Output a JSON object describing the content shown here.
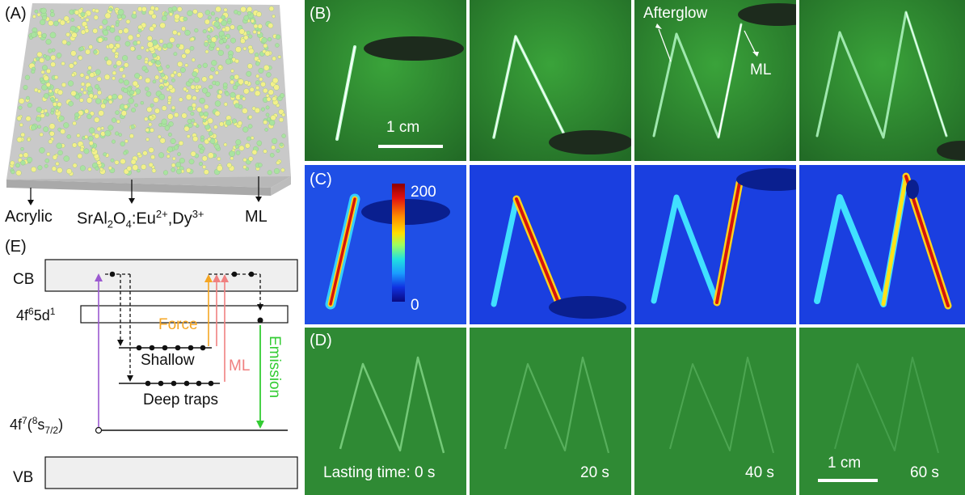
{
  "panel_a": {
    "label": "(A)",
    "material_labels": [
      "Acrylic",
      "SrAl2O4:Eu2+,Dy3+",
      "ML"
    ]
  },
  "panel_e": {
    "label": "(E)",
    "levels": {
      "cb": "CB",
      "vb": "VB",
      "excited_main": "4f",
      "excited_sup": "6",
      "excited_rest": "5d",
      "excited_sup2": "1",
      "ground_main": "4f",
      "ground_sup": "7",
      "ground_paren": "(",
      "ground_sup8": "8",
      "ground_s": "s",
      "ground_sub": "7/2",
      "ground_close": ")"
    },
    "traps": {
      "shallow": "Shallow",
      "deep": "Deep traps"
    },
    "arrows": {
      "force": "Force",
      "ml": "ML",
      "emission": "Emission"
    },
    "colors": {
      "force": "#f5a623",
      "ml": "#f08080",
      "emission": "#33cc33",
      "excitation": "#9b59d0"
    }
  },
  "panel_b": {
    "label": "(B)",
    "annotations": {
      "afterglow": "Afterglow",
      "ml": "ML"
    },
    "scale_bar": "1 cm"
  },
  "panel_c": {
    "label": "(C)",
    "colorbar": {
      "max": "200",
      "min": "0"
    }
  },
  "panel_d": {
    "label": "(D)",
    "times": [
      "Lasting time: 0 s",
      "20 s",
      "40 s",
      "60 s"
    ],
    "scale_bar": "1 cm"
  }
}
